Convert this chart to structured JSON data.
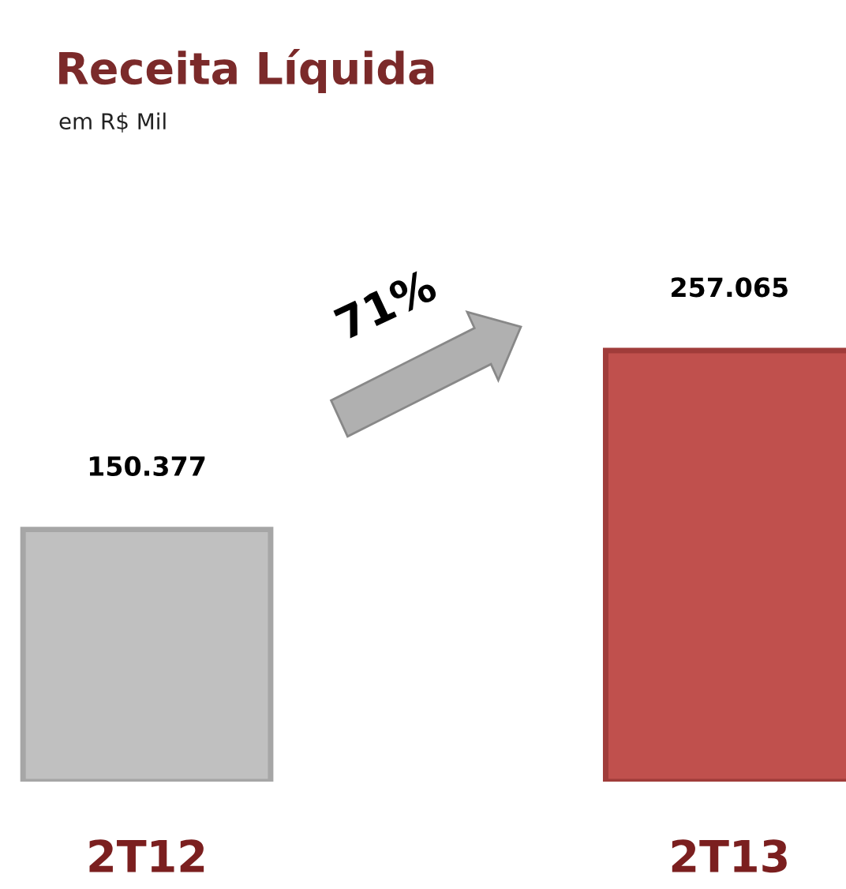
{
  "chart_data": {
    "type": "bar",
    "title": "Receita Líquida",
    "subtitle": "em R$ Mil",
    "categories": [
      "2T12",
      "2T13"
    ],
    "values": [
      150377,
      257065
    ],
    "colors": [
      "#c0c0c0",
      "#c0504d"
    ],
    "value_labels": [
      "150.377",
      "257.065"
    ],
    "annotations": [
      "71%"
    ],
    "grid": false,
    "legend": false
  }
}
